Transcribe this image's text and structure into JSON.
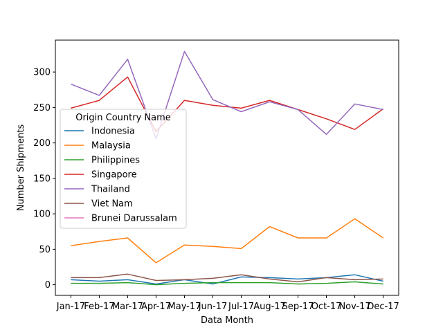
{
  "chart_data": {
    "type": "line",
    "title": "",
    "xlabel": "Data Month",
    "ylabel": "Number Shipments",
    "categories": [
      "Jan-17",
      "Feb-17",
      "Mar-17",
      "Apr-17",
      "May-17",
      "Jun-17",
      "Jul-17",
      "Aug-17",
      "Sep-17",
      "Oct-17",
      "Nov-17",
      "Dec-17"
    ],
    "yticks": [
      0,
      50,
      100,
      150,
      200,
      250,
      300
    ],
    "ylim": [
      -15,
      345
    ],
    "grid": false,
    "legend": {
      "title": "Origin Country Name",
      "placement": "center-left"
    },
    "series": [
      {
        "name": "Indonesia",
        "color": "#1f77b4",
        "values": [
          7,
          5,
          7,
          1,
          7,
          1,
          11,
          10,
          8,
          10,
          14,
          5
        ]
      },
      {
        "name": "Malaysia",
        "color": "#ff7f0e",
        "values": [
          55,
          61,
          66,
          31,
          56,
          54,
          51,
          82,
          66,
          66,
          93,
          66
        ]
      },
      {
        "name": "Philippines",
        "color": "#2ca02c",
        "values": [
          2,
          2,
          3,
          0,
          2,
          3,
          3,
          3,
          1,
          2,
          4,
          1
        ]
      },
      {
        "name": "Singapore",
        "color": "#d62728",
        "values": [
          249,
          260,
          293,
          216,
          260,
          253,
          249,
          260,
          247,
          234,
          219,
          248
        ]
      },
      {
        "name": "Thailand",
        "color": "#9467bd",
        "values": [
          283,
          267,
          318,
          206,
          329,
          261,
          244,
          258,
          247,
          212,
          255,
          247
        ]
      },
      {
        "name": "Viet Nam",
        "color": "#8c564b",
        "values": [
          10,
          10,
          15,
          6,
          7,
          9,
          14,
          8,
          4,
          10,
          7,
          8
        ]
      },
      {
        "name": "Brunei Darussalam",
        "color": "#e377c2",
        "values": [
          null,
          null,
          null,
          214,
          null,
          null,
          null,
          null,
          null,
          null,
          null,
          null
        ]
      }
    ]
  }
}
